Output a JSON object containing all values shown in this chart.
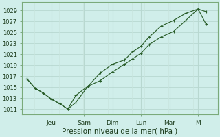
{
  "line_upper_x": [
    0,
    0.33,
    0.67,
    1.0,
    1.33,
    1.67,
    2.0,
    2.5,
    3.0,
    3.5,
    4.0,
    4.33,
    4.67,
    5.0,
    5.5,
    6.0,
    6.5,
    7.0,
    7.33
  ],
  "line_upper_y": [
    1016.5,
    1014.8,
    1013.9,
    1012.8,
    1012.0,
    1011.0,
    1012.2,
    1015.2,
    1017.6,
    1019.2,
    1020.0,
    1021.5,
    1022.5,
    1024.2,
    1026.2,
    1027.2,
    1028.5,
    1029.3,
    1028.8
  ],
  "line_lower_x": [
    0,
    0.33,
    0.67,
    1.0,
    1.33,
    1.67,
    2.0,
    2.5,
    3.0,
    3.5,
    4.0,
    4.33,
    4.67,
    5.0,
    5.5,
    6.0,
    6.5,
    7.0,
    7.33
  ],
  "line_lower_y": [
    1016.5,
    1014.8,
    1013.9,
    1012.8,
    1012.0,
    1011.0,
    1013.5,
    1015.2,
    1016.2,
    1017.8,
    1019.2,
    1020.2,
    1021.2,
    1022.8,
    1024.2,
    1025.2,
    1027.2,
    1029.3,
    1026.5
  ],
  "line_color": "#2a5e2a",
  "bg_color": "#d0eeea",
  "grid_major_color": "#b8d8d0",
  "grid_minor_color": "#c8e4de",
  "xlabel": "Pression niveau de la mer( hPa )",
  "yticks": [
    1011,
    1013,
    1015,
    1017,
    1019,
    1021,
    1023,
    1025,
    1027,
    1029
  ],
  "xtick_positions": [
    1.0,
    2.33,
    3.5,
    4.67,
    5.83,
    7.0
  ],
  "xtick_labels": [
    "Jeu",
    "Sam",
    "Dim",
    "Lun",
    "Mar",
    "M"
  ],
  "ylim": [
    1010.0,
    1030.5
  ],
  "xlim": [
    -0.2,
    7.8
  ],
  "xlabel_fontsize": 7.5,
  "ytick_fontsize": 6.0,
  "xtick_fontsize": 6.5
}
